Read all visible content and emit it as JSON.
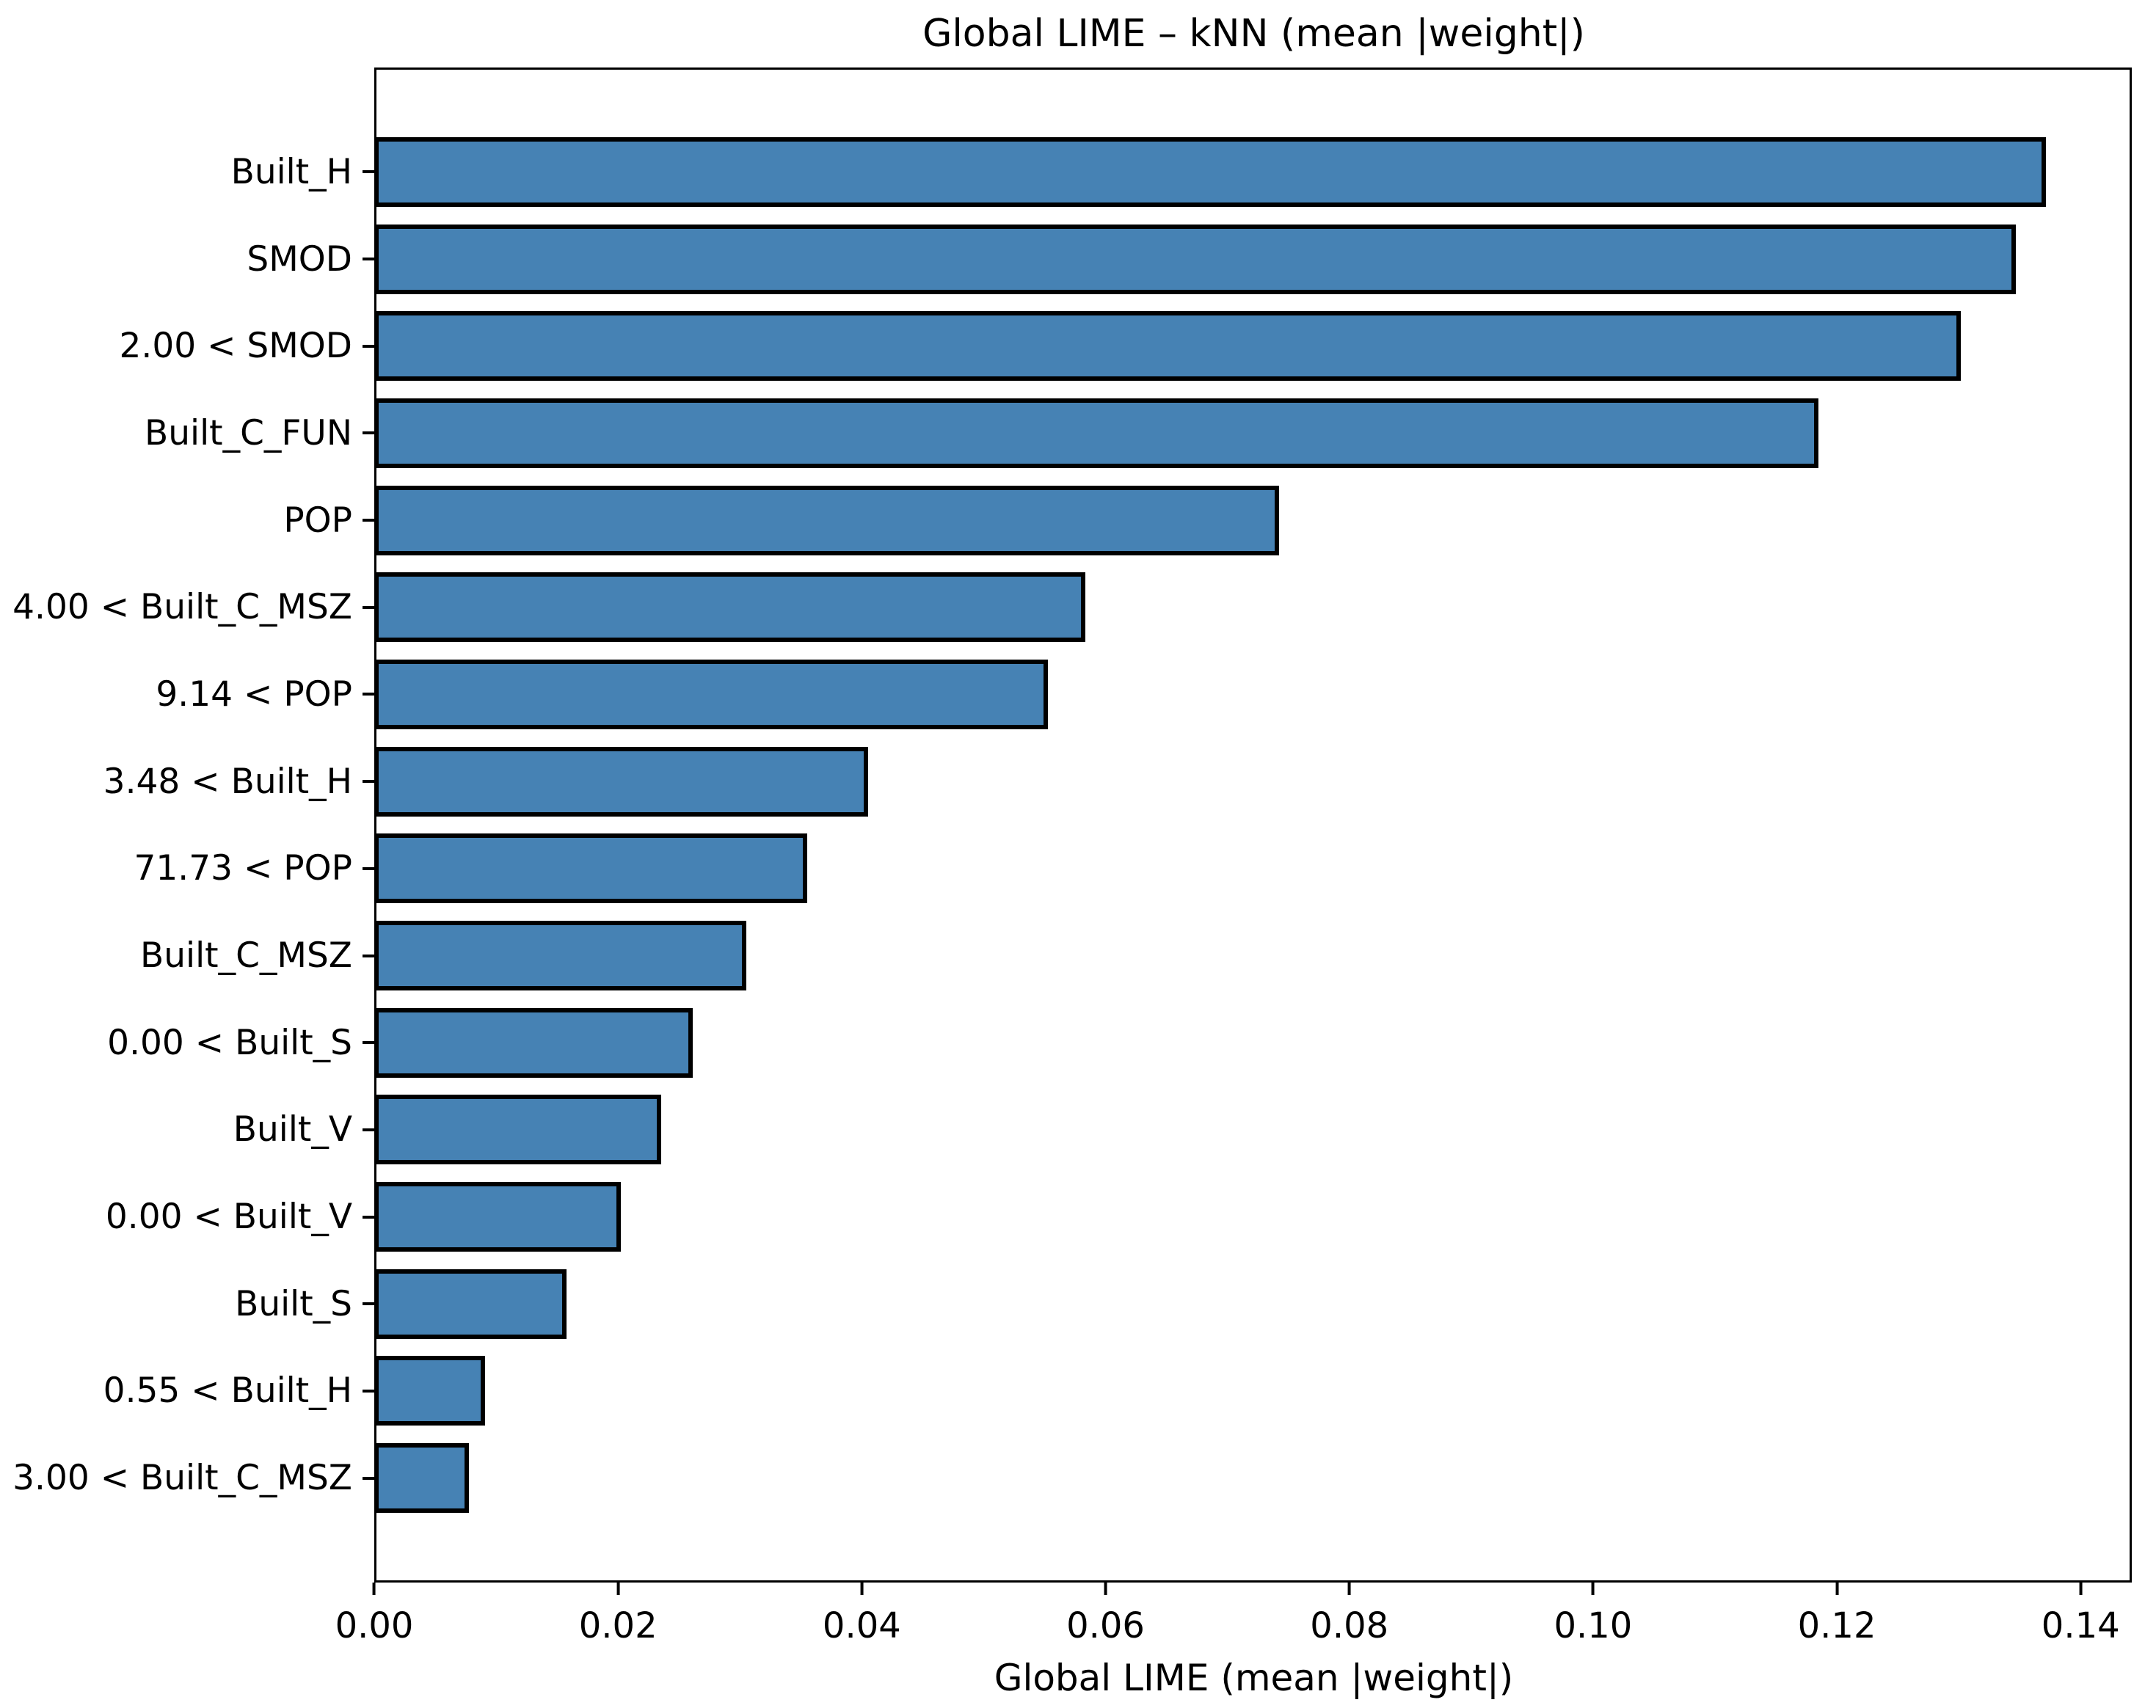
{
  "figure": {
    "background": "#ffffff"
  },
  "chart_data": {
    "type": "bar",
    "orientation": "horizontal",
    "title": "Global LIME – kNN (mean |weight|)",
    "xlabel": "Global LIME (mean |weight|)",
    "ylabel": "",
    "categories": [
      "Built_H",
      "SMOD",
      "2.00 < SMOD",
      "Built_C_FUN",
      "POP",
      "4.00 < Built_C_MSZ",
      "9.14 < POP",
      "3.48 < Built_H",
      "71.73 < POP",
      "Built_C_MSZ",
      "0.00 < Built_S",
      "Built_V",
      "0.00 < Built_V",
      "Built_S",
      "0.55 < Built_H",
      "3.00 < Built_C_MSZ"
    ],
    "values": [
      0.1375,
      0.135,
      0.1305,
      0.1188,
      0.0744,
      0.0585,
      0.0554,
      0.0406,
      0.0356,
      0.0306,
      0.0262,
      0.0236,
      0.0203,
      0.0158,
      0.0091,
      0.0078
    ],
    "xlim": [
      0,
      0.1442
    ],
    "xticks": [
      0.0,
      0.02,
      0.04,
      0.06,
      0.08,
      0.1,
      0.12,
      0.14
    ],
    "xtick_labels": [
      "0.00",
      "0.02",
      "0.04",
      "0.06",
      "0.08",
      "0.10",
      "0.12",
      "0.14"
    ],
    "bar_color": "#4682b4",
    "bar_edge_color": "#000000",
    "bar_height_fraction": 0.8,
    "grid": false,
    "legend": null
  }
}
